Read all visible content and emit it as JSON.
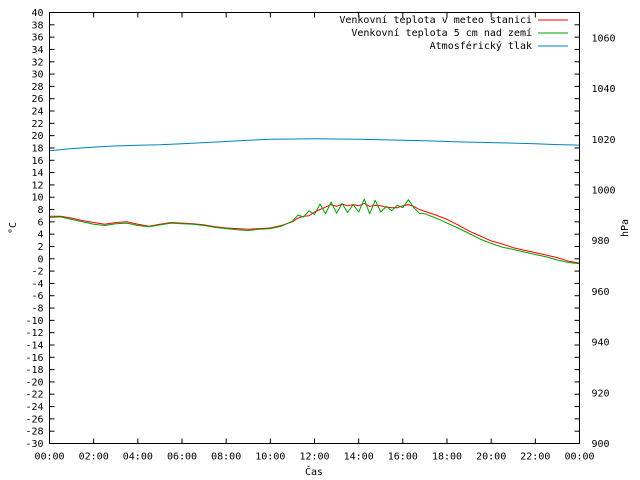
{
  "chart_data": {
    "type": "line",
    "xlabel": "Čas",
    "ylabel": "°C",
    "y2label": "hPa",
    "xlim": [
      0,
      24
    ],
    "ylim": [
      -30,
      40
    ],
    "y2lim": [
      900,
      1070
    ],
    "grid": false,
    "legend_position": "top-right",
    "x_ticks": [
      "00:00",
      "02:00",
      "04:00",
      "06:00",
      "08:00",
      "10:00",
      "12:00",
      "14:00",
      "16:00",
      "18:00",
      "20:00",
      "22:00",
      "00:00"
    ],
    "y_ticks": [
      40,
      38,
      36,
      34,
      32,
      30,
      28,
      26,
      24,
      22,
      20,
      18,
      16,
      14,
      12,
      10,
      8,
      6,
      4,
      2,
      0,
      -2,
      -4,
      -6,
      -8,
      -10,
      -12,
      -14,
      -16,
      -18,
      -20,
      -22,
      -24,
      -26,
      -28,
      -30
    ],
    "y2_ticks": [
      1060,
      1040,
      1020,
      1000,
      980,
      960,
      940,
      920,
      900
    ],
    "series": [
      {
        "name": "Venkovní teplota v meteo stanici",
        "color": "#ff0000",
        "axis": "left",
        "x": [
          0,
          0.5,
          1,
          1.5,
          2,
          2.5,
          3,
          3.5,
          4,
          4.5,
          5,
          5.5,
          6,
          6.5,
          7,
          7.5,
          8,
          8.5,
          9,
          9.5,
          10,
          10.5,
          11,
          11.25,
          11.5,
          11.75,
          12,
          12.25,
          12.5,
          12.75,
          13,
          13.25,
          13.5,
          13.75,
          14,
          14.25,
          14.5,
          14.75,
          15,
          15.25,
          15.5,
          15.75,
          16,
          16.25,
          16.5,
          16.75,
          17,
          17.5,
          18,
          18.5,
          19,
          19.5,
          20,
          20.5,
          21,
          21.5,
          22,
          22.5,
          23,
          23.5,
          24
        ],
        "y": [
          6.9,
          6.9,
          6.6,
          6.2,
          5.9,
          5.6,
          5.9,
          6.0,
          5.6,
          5.3,
          5.6,
          5.9,
          5.8,
          5.7,
          5.5,
          5.2,
          5.0,
          4.9,
          4.8,
          4.9,
          5.0,
          5.4,
          6.0,
          6.6,
          6.9,
          7.0,
          7.6,
          8.0,
          8.4,
          8.8,
          8.5,
          8.9,
          8.6,
          8.8,
          8.6,
          9.0,
          8.5,
          8.7,
          8.6,
          8.4,
          8.3,
          8.3,
          8.6,
          8.8,
          8.5,
          8.0,
          7.7,
          7.1,
          6.4,
          5.5,
          4.5,
          3.7,
          2.9,
          2.4,
          1.8,
          1.4,
          1.0,
          0.6,
          0.2,
          -0.4,
          -0.7
        ]
      },
      {
        "name": "Venkovní teplota 5 cm nad zemí",
        "color": "#00a000",
        "axis": "left",
        "x": [
          0,
          0.5,
          1,
          1.5,
          2,
          2.5,
          3,
          3.5,
          4,
          4.5,
          5,
          5.5,
          6,
          6.5,
          7,
          7.5,
          8,
          8.5,
          9,
          9.5,
          10,
          10.5,
          11,
          11.25,
          11.5,
          11.75,
          12,
          12.25,
          12.5,
          12.75,
          13,
          13.25,
          13.5,
          13.75,
          14,
          14.25,
          14.5,
          14.75,
          15,
          15.25,
          15.5,
          15.75,
          16,
          16.25,
          16.5,
          16.75,
          17,
          17.5,
          18,
          18.5,
          19,
          19.5,
          20,
          20.5,
          21,
          21.5,
          22,
          22.5,
          23,
          23.5,
          24
        ],
        "y": [
          6.7,
          6.8,
          6.4,
          6.0,
          5.6,
          5.4,
          5.7,
          5.8,
          5.4,
          5.2,
          5.5,
          5.8,
          5.7,
          5.6,
          5.4,
          5.1,
          4.9,
          4.7,
          4.6,
          4.8,
          4.9,
          5.3,
          6.1,
          7.1,
          6.8,
          7.8,
          7.2,
          8.9,
          7.3,
          9.2,
          7.4,
          9.0,
          7.5,
          8.8,
          7.6,
          9.7,
          7.3,
          9.5,
          7.6,
          8.5,
          7.8,
          8.7,
          8.3,
          9.6,
          8.3,
          7.4,
          7.3,
          6.6,
          5.8,
          5.0,
          4.1,
          3.2,
          2.5,
          1.9,
          1.5,
          1.1,
          0.7,
          0.3,
          -0.2,
          -0.6,
          -0.8
        ]
      },
      {
        "name": "Atmosférický tlak",
        "color": "#0080c0",
        "axis": "right",
        "x": [
          0,
          1,
          2,
          3,
          4,
          5,
          6,
          7,
          8,
          9,
          10,
          11,
          12,
          13,
          14,
          15,
          16,
          17,
          18,
          19,
          20,
          21,
          22,
          23,
          24
        ],
        "y": [
          1015.5,
          1016.3,
          1016.9,
          1017.4,
          1017.6,
          1017.8,
          1018.2,
          1018.7,
          1019.1,
          1019.6,
          1020.0,
          1020.1,
          1020.2,
          1020.1,
          1020.0,
          1019.8,
          1019.6,
          1019.4,
          1019.1,
          1018.9,
          1018.7,
          1018.5,
          1018.2,
          1017.9,
          1017.7
        ]
      }
    ]
  }
}
